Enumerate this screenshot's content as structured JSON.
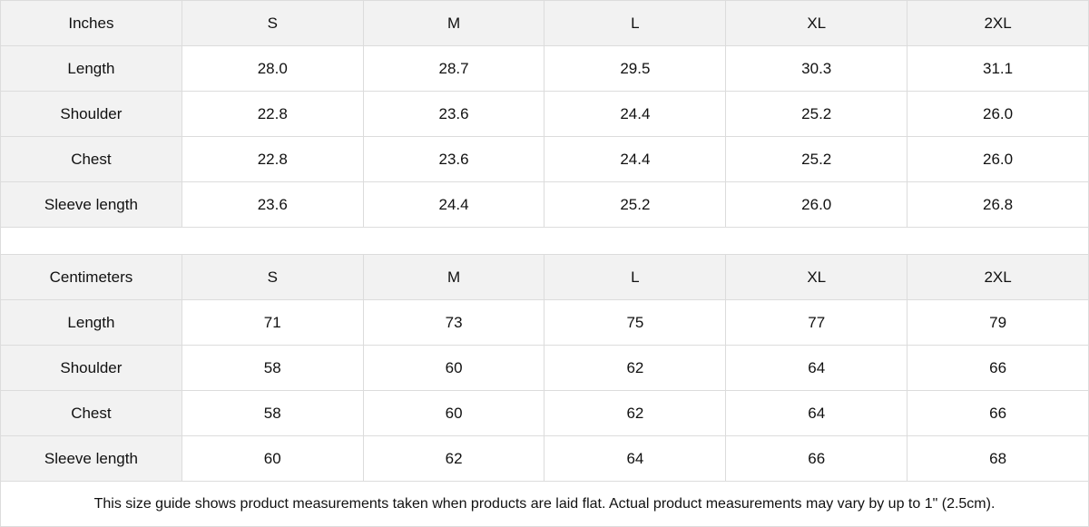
{
  "inches": {
    "header": [
      "Inches",
      "S",
      "M",
      "L",
      "XL",
      "2XL"
    ],
    "rows": [
      {
        "label": "Length",
        "values": [
          "28.0",
          "28.7",
          "29.5",
          "30.3",
          "31.1"
        ]
      },
      {
        "label": "Shoulder",
        "values": [
          "22.8",
          "23.6",
          "24.4",
          "25.2",
          "26.0"
        ]
      },
      {
        "label": "Chest",
        "values": [
          "22.8",
          "23.6",
          "24.4",
          "25.2",
          "26.0"
        ]
      },
      {
        "label": "Sleeve length",
        "values": [
          "23.6",
          "24.4",
          "25.2",
          "26.0",
          "26.8"
        ]
      }
    ]
  },
  "centimeters": {
    "header": [
      "Centimeters",
      "S",
      "M",
      "L",
      "XL",
      "2XL"
    ],
    "rows": [
      {
        "label": "Length",
        "values": [
          "71",
          "73",
          "75",
          "77",
          "79"
        ]
      },
      {
        "label": "Shoulder",
        "values": [
          "58",
          "60",
          "62",
          "64",
          "66"
        ]
      },
      {
        "label": "Chest",
        "values": [
          "58",
          "60",
          "62",
          "64",
          "66"
        ]
      },
      {
        "label": "Sleeve length",
        "values": [
          "60",
          "62",
          "64",
          "66",
          "68"
        ]
      }
    ]
  },
  "note": "This size guide shows product measurements taken when products are laid flat.  Actual product measurements may vary by up to 1\" (2.5cm).",
  "colors": {
    "header_bg": "#f2f2f2",
    "border": "#dcdcdc"
  }
}
